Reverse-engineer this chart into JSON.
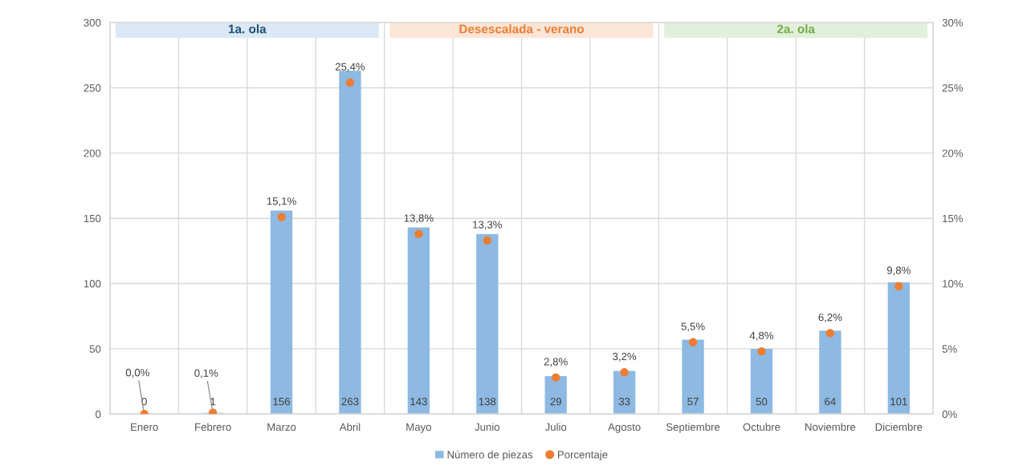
{
  "chart_data": {
    "type": "bar",
    "categories": [
      "Enero",
      "Febrero",
      "Marzo",
      "Abril",
      "Mayo",
      "Junio",
      "Julio",
      "Agosto",
      "Septiembre",
      "Octubre",
      "Noviembre",
      "Diciembre"
    ],
    "series": [
      {
        "name": "Número de piezas",
        "color": "#8db9e2",
        "values": [
          0,
          1,
          156,
          263,
          143,
          138,
          29,
          33,
          57,
          50,
          64,
          101
        ],
        "data_labels": true
      },
      {
        "name": "Porcentaje",
        "type": "scatter",
        "axis": "y2",
        "color": "#ed7d31",
        "marker": "circle",
        "values": [
          0.0,
          0.1,
          15.1,
          25.4,
          13.8,
          13.3,
          2.8,
          3.2,
          5.5,
          4.8,
          6.2,
          9.8
        ],
        "value_labels": [
          "0,0%",
          "0,1%",
          "15,1%",
          "25,4%",
          "13,8%",
          "13,3%",
          "2,8%",
          "3,2%",
          "5,5%",
          "4,8%",
          "6,2%",
          "9,8%"
        ]
      }
    ],
    "ylim": [
      0,
      300
    ],
    "yticks": [
      0,
      50,
      100,
      150,
      200,
      250,
      300
    ],
    "y2lim": [
      0,
      30
    ],
    "y2ticks": [
      {
        "value": 0,
        "label": "0%"
      },
      {
        "value": 5,
        "label": "5%"
      },
      {
        "value": 10,
        "label": "10%"
      },
      {
        "value": 15,
        "label": "15%"
      },
      {
        "value": 20,
        "label": "20%"
      },
      {
        "value": 25,
        "label": "25%"
      },
      {
        "value": 30,
        "label": "30%"
      }
    ],
    "grid": true,
    "legend": "bottom",
    "annotations": [
      "1a. ola",
      "Desescalada - verano",
      "2a. ola"
    ]
  }
}
